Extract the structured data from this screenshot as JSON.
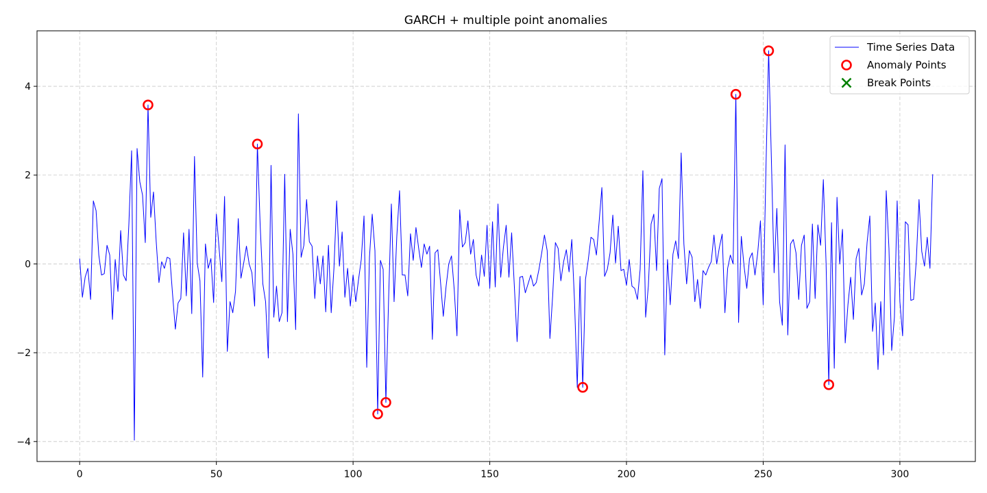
{
  "chart_data": {
    "type": "line",
    "title": "GARCH + multiple point anomalies",
    "xlabel": "",
    "ylabel": "",
    "xlim": [
      -15.6,
      327.6
    ],
    "ylim": [
      -4.45,
      5.25
    ],
    "xticks": [
      0,
      50,
      100,
      150,
      200,
      250,
      300
    ],
    "yticks": [
      -4,
      -2,
      0,
      2,
      4
    ],
    "grid": true,
    "legend_position": "top-right",
    "series": [
      {
        "name": "Time Series Data",
        "color": "#0000ff",
        "x": [
          0,
          1,
          2,
          3,
          4,
          5,
          6,
          7,
          8,
          9,
          10,
          11,
          12,
          13,
          14,
          15,
          16,
          17,
          18,
          19,
          20,
          21,
          22,
          23,
          24,
          25,
          26,
          27,
          28,
          29,
          30,
          31,
          32,
          33,
          34,
          35,
          36,
          37,
          38,
          39,
          40,
          41,
          42,
          43,
          44,
          45,
          46,
          47,
          48,
          49,
          50,
          51,
          52,
          53,
          54,
          55,
          56,
          57,
          58,
          59,
          60,
          61,
          62,
          63,
          64,
          65,
          66,
          67,
          68,
          69,
          70,
          71,
          72,
          73,
          74,
          75,
          76,
          77,
          78,
          79,
          80,
          81,
          82,
          83,
          84,
          85,
          86,
          87,
          88,
          89,
          90,
          91,
          92,
          93,
          94,
          95,
          96,
          97,
          98,
          99,
          100,
          101,
          102,
          103,
          104,
          105,
          106,
          107,
          108,
          109,
          110,
          111,
          112,
          113,
          114,
          115,
          116,
          117,
          118,
          119,
          120,
          121,
          122,
          123,
          124,
          125,
          126,
          127,
          128,
          129,
          130,
          131,
          132,
          133,
          134,
          135,
          136,
          137,
          138,
          139,
          140,
          141,
          142,
          143,
          144,
          145,
          146,
          147,
          148,
          149,
          150,
          151,
          152,
          153,
          154,
          155,
          156,
          157,
          158,
          159,
          160,
          161,
          162,
          163,
          164,
          165,
          166,
          167,
          168,
          169,
          170,
          171,
          172,
          173,
          174,
          175,
          176,
          177,
          178,
          179,
          180,
          181,
          182,
          183,
          184,
          185,
          186,
          187,
          188,
          189,
          190,
          191,
          192,
          193,
          194,
          195,
          196,
          197,
          198,
          199,
          200,
          201,
          202,
          203,
          204,
          205,
          206,
          207,
          208,
          209,
          210,
          211,
          212,
          213,
          214,
          215,
          216,
          217,
          218,
          219,
          220,
          221,
          222,
          223,
          224,
          225,
          226,
          227,
          228,
          229,
          230,
          231,
          232,
          233,
          234,
          235,
          236,
          237,
          238,
          239,
          240,
          241,
          242,
          243,
          244,
          245,
          246,
          247,
          248,
          249,
          250,
          251,
          252,
          253,
          254,
          255,
          256,
          257,
          258,
          259,
          260,
          261,
          262,
          263,
          264,
          265,
          266,
          267,
          268,
          269,
          270,
          271,
          272,
          273,
          274,
          275,
          276,
          277,
          278,
          279,
          280,
          281,
          282,
          283,
          284,
          285,
          286,
          287,
          288,
          289,
          290,
          291,
          292,
          293,
          294,
          295,
          296,
          297,
          298,
          299,
          300,
          301,
          302,
          303,
          304,
          305,
          306,
          307,
          308,
          309,
          310,
          311,
          312
        ],
        "values": [
          0.12,
          -0.75,
          -0.3,
          -0.1,
          -0.8,
          1.42,
          1.2,
          0.2,
          -0.25,
          -0.22,
          0.42,
          0.2,
          -1.25,
          0.1,
          -0.62,
          0.75,
          -0.25,
          -0.38,
          0.9,
          2.55,
          -3.97,
          2.6,
          1.85,
          1.55,
          0.48,
          3.58,
          1.05,
          1.62,
          0.5,
          -0.42,
          0.05,
          -0.1,
          0.15,
          0.12,
          -0.7,
          -1.47,
          -0.88,
          -0.78,
          0.7,
          -0.72,
          0.78,
          -1.12,
          2.42,
          0.02,
          -0.38,
          -2.55,
          0.45,
          -0.1,
          0.12,
          -0.87,
          1.12,
          0.35,
          -0.4,
          1.52,
          -1.97,
          -0.85,
          -1.1,
          -0.62,
          1.02,
          -0.32,
          0.02,
          0.4,
          0.0,
          -0.2,
          -0.95,
          2.7,
          0.9,
          -0.45,
          -0.85,
          -2.12,
          2.22,
          -1.2,
          -0.5,
          -1.3,
          -1.1,
          2.02,
          -1.3,
          0.78,
          0.22,
          -1.48,
          3.38,
          0.15,
          0.42,
          1.45,
          0.5,
          0.4,
          -0.78,
          0.18,
          -0.45,
          0.18,
          -1.08,
          0.42,
          -1.1,
          -0.1,
          1.42,
          -0.05,
          0.72,
          -0.75,
          -0.1,
          -0.95,
          -0.25,
          -0.85,
          -0.35,
          0.1,
          1.08,
          -2.33,
          0.15,
          1.12,
          0.3,
          -3.38,
          0.08,
          -0.12,
          -3.12,
          -0.78,
          1.35,
          -0.85,
          0.62,
          1.65,
          -0.25,
          -0.25,
          -0.72,
          0.68,
          0.08,
          0.82,
          0.35,
          -0.08,
          0.45,
          0.22,
          0.4,
          -1.7,
          0.25,
          0.32,
          -0.42,
          -1.18,
          -0.52,
          0.0,
          0.18,
          -0.58,
          -1.62,
          1.22,
          0.38,
          0.48,
          0.97,
          0.22,
          0.55,
          -0.25,
          -0.5,
          0.2,
          -0.28,
          0.87,
          -0.55,
          0.95,
          -0.52,
          1.35,
          -0.3,
          0.38,
          0.87,
          -0.3,
          0.7,
          -0.52,
          -1.75,
          -0.3,
          -0.28,
          -0.65,
          -0.45,
          -0.25,
          -0.5,
          -0.42,
          -0.12,
          0.25,
          0.65,
          0.3,
          -1.68,
          -0.72,
          0.48,
          0.35,
          -0.38,
          0.05,
          0.32,
          -0.18,
          0.55,
          -0.85,
          -2.78,
          -0.28,
          -2.78,
          -0.35,
          0.08,
          0.6,
          0.55,
          0.2,
          0.95,
          1.72,
          -0.28,
          -0.12,
          0.25,
          1.1,
          0.02,
          0.85,
          -0.15,
          -0.12,
          -0.48,
          0.1,
          -0.5,
          -0.55,
          -0.8,
          -0.12,
          2.1,
          -1.2,
          -0.5,
          0.9,
          1.12,
          -0.15,
          1.7,
          1.92,
          -2.05,
          0.1,
          -0.92,
          0.22,
          0.52,
          0.12,
          2.5,
          0.45,
          -0.45,
          0.3,
          0.15,
          -0.85,
          -0.35,
          -1.0,
          -0.15,
          -0.25,
          -0.08,
          0.05,
          0.65,
          0.0,
          0.38,
          0.67,
          -1.1,
          -0.1,
          0.2,
          0.0,
          3.82,
          -1.32,
          0.62,
          -0.05,
          -0.55,
          0.12,
          0.25,
          -0.25,
          0.25,
          0.97,
          -0.92,
          2.12,
          4.8,
          2.35,
          -0.2,
          1.25,
          -0.85,
          -1.38,
          2.68,
          -1.6,
          0.45,
          0.55,
          0.25,
          -0.8,
          0.42,
          0.65,
          -1.0,
          -0.85,
          0.9,
          -0.78,
          0.88,
          0.42,
          1.9,
          0.02,
          -2.72,
          0.93,
          -2.35,
          1.5,
          0.0,
          0.78,
          -1.78,
          -0.92,
          -0.3,
          -1.25,
          0.12,
          0.35,
          -0.7,
          -0.45,
          0.48,
          1.08,
          -1.52,
          -0.88,
          -2.38,
          -0.85,
          -2.05,
          1.65,
          0.35,
          -1.95,
          -1.2,
          1.42,
          -0.85,
          -1.62,
          0.95,
          0.88,
          -0.82,
          -0.8,
          0.08,
          1.45,
          0.28,
          -0.05,
          0.6,
          -0.1,
          2.02
        ]
      },
      {
        "name": "Anomaly Points",
        "color": "#ff0000",
        "marker": "circle",
        "x": [
          25,
          65,
          109,
          112,
          184,
          240,
          252,
          274
        ],
        "values": [
          3.58,
          2.7,
          -3.38,
          -3.12,
          -2.78,
          3.82,
          4.8,
          -2.72
        ]
      },
      {
        "name": "Break Points",
        "color": "#008000",
        "marker": "x",
        "x": [],
        "values": []
      }
    ]
  }
}
